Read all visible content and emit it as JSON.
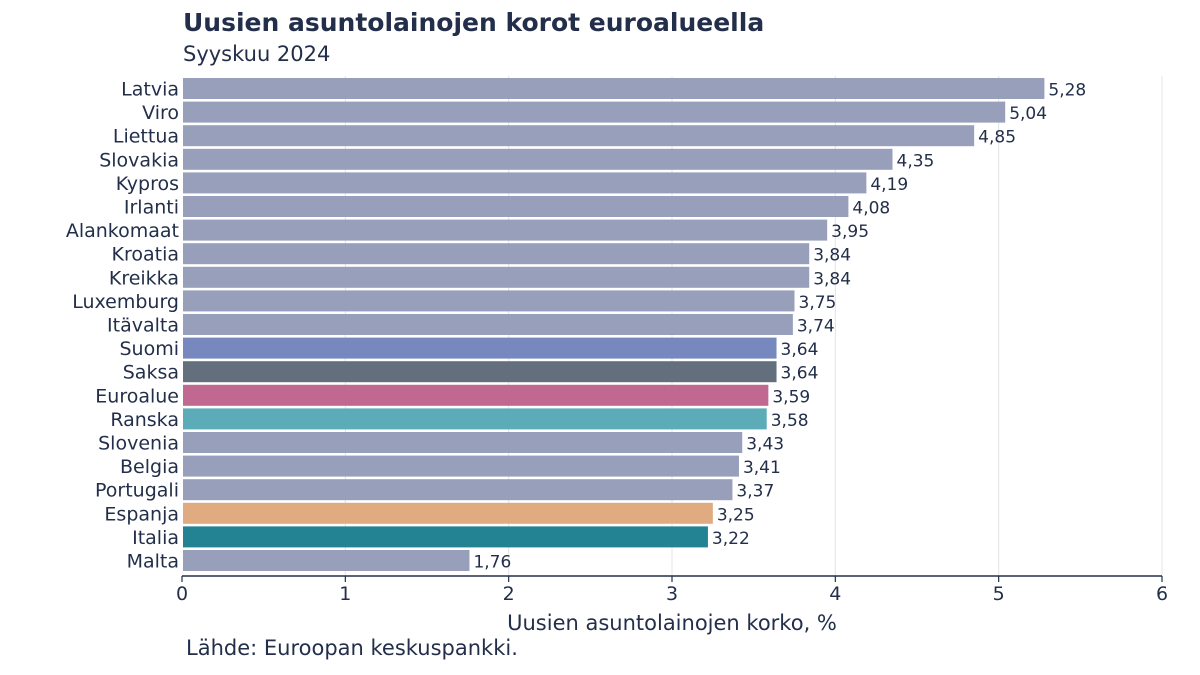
{
  "chart_data": {
    "type": "bar",
    "orientation": "horizontal",
    "title": "Uusien asuntolainojen korot euroalueella",
    "subtitle": "Syyskuu 2024",
    "xlabel": "Uusien asuntolainojen korko, %",
    "source": "Lähde: Euroopan keskuspankki.",
    "xlim": [
      0,
      6
    ],
    "xticks": [
      "0",
      "1",
      "2",
      "3",
      "4",
      "5",
      "6"
    ],
    "grid": "vertical",
    "categories": [
      "Latvia",
      "Viro",
      "Liettua",
      "Slovakia",
      "Kypros",
      "Irlanti",
      "Alankomaat",
      "Kroatia",
      "Kreikka",
      "Luxemburg",
      "Itävalta",
      "Suomi",
      "Saksa",
      "Euroalue",
      "Ranska",
      "Slovenia",
      "Belgia",
      "Portugali",
      "Espanja",
      "Italia",
      "Malta"
    ],
    "values": [
      5.28,
      5.04,
      4.85,
      4.35,
      4.19,
      4.08,
      3.95,
      3.84,
      3.84,
      3.75,
      3.74,
      3.64,
      3.64,
      3.59,
      3.58,
      3.43,
      3.41,
      3.37,
      3.25,
      3.22,
      1.76
    ],
    "value_labels": [
      "5,28",
      "5,04",
      "4,85",
      "4,35",
      "4,19",
      "4,08",
      "3,95",
      "3,84",
      "3,84",
      "3,75",
      "3,74",
      "3,64",
      "3,64",
      "3,59",
      "3,58",
      "3,43",
      "3,41",
      "3,37",
      "3,25",
      "3,22",
      "1,76"
    ],
    "colors": {
      "default": "#979fbb",
      "Suomi": "#7688bd",
      "Saksa": "#636f7d",
      "Euroalue": "#c0688f",
      "Ranska": "#5cabb8",
      "Espanja": "#e0ab80",
      "Italia": "#238393"
    }
  }
}
